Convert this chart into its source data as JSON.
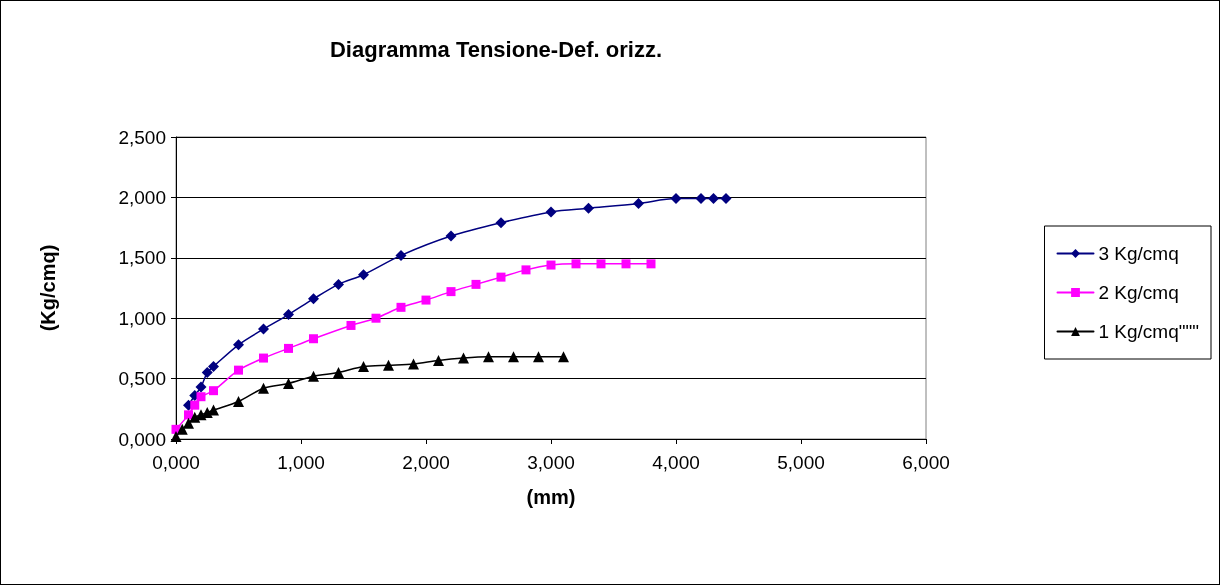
{
  "chart_data": {
    "type": "line",
    "title": "Diagramma Tensione-Def. orizz.",
    "xlabel": "(mm)",
    "ylabel": "(Kg/cmq)",
    "xlim": [
      0,
      6
    ],
    "xticks": [
      {
        "value": 0,
        "label": "0,000"
      },
      {
        "value": 1,
        "label": "1,000"
      },
      {
        "value": 2,
        "label": "2,000"
      },
      {
        "value": 3,
        "label": "3,000"
      },
      {
        "value": 4,
        "label": "4,000"
      },
      {
        "value": 5,
        "label": "5,000"
      },
      {
        "value": 6,
        "label": "6,000"
      }
    ],
    "ylim": [
      0,
      2.5
    ],
    "yticks": [
      {
        "value": 0,
        "label": "0,000"
      },
      {
        "value": 0.5,
        "label": "0,500"
      },
      {
        "value": 1,
        "label": "1,000"
      },
      {
        "value": 1.5,
        "label": "1,500"
      },
      {
        "value": 2,
        "label": "2,000"
      },
      {
        "value": 2.5,
        "label": "2,500"
      }
    ],
    "grid": "y",
    "legend": "right",
    "line_style": "solid",
    "series": [
      {
        "name": "3 Kg/cmq",
        "color": "#000080",
        "marker": "diamond",
        "x": [
          0.1,
          0.15,
          0.2,
          0.25,
          0.3,
          0.5,
          0.7,
          0.9,
          1.1,
          1.3,
          1.5,
          1.8,
          2.2,
          2.6,
          3.0,
          3.3,
          3.7,
          4.0,
          4.2,
          4.3,
          4.4
        ],
        "values": [
          0.28,
          0.36,
          0.43,
          0.55,
          0.6,
          0.78,
          0.91,
          1.03,
          1.16,
          1.28,
          1.36,
          1.52,
          1.68,
          1.79,
          1.88,
          1.91,
          1.95,
          1.99,
          1.99,
          1.99,
          1.99
        ]
      },
      {
        "name": "2 Kg/cmq",
        "color": "#ff00ff",
        "marker": "square",
        "x": [
          0,
          0.1,
          0.15,
          0.2,
          0.3,
          0.5,
          0.7,
          0.9,
          1.1,
          1.4,
          1.6,
          1.8,
          2.0,
          2.2,
          2.4,
          2.6,
          2.8,
          3.0,
          3.2,
          3.4,
          3.6,
          3.8
        ],
        "values": [
          0.08,
          0.2,
          0.28,
          0.35,
          0.4,
          0.57,
          0.67,
          0.75,
          0.83,
          0.94,
          1.0,
          1.09,
          1.15,
          1.22,
          1.28,
          1.34,
          1.4,
          1.44,
          1.45,
          1.45,
          1.45,
          1.45
        ]
      },
      {
        "name": "1 Kg/cmq\"\"\"",
        "color": "#000000",
        "marker": "triangle",
        "x": [
          0,
          0.05,
          0.1,
          0.15,
          0.2,
          0.25,
          0.3,
          0.5,
          0.7,
          0.9,
          1.1,
          1.3,
          1.5,
          1.7,
          1.9,
          2.1,
          2.3,
          2.5,
          2.7,
          2.9,
          3.1
        ],
        "values": [
          0.02,
          0.08,
          0.13,
          0.18,
          0.2,
          0.22,
          0.24,
          0.31,
          0.42,
          0.46,
          0.52,
          0.55,
          0.6,
          0.61,
          0.62,
          0.65,
          0.67,
          0.68,
          0.68,
          0.68,
          0.68
        ]
      }
    ]
  }
}
